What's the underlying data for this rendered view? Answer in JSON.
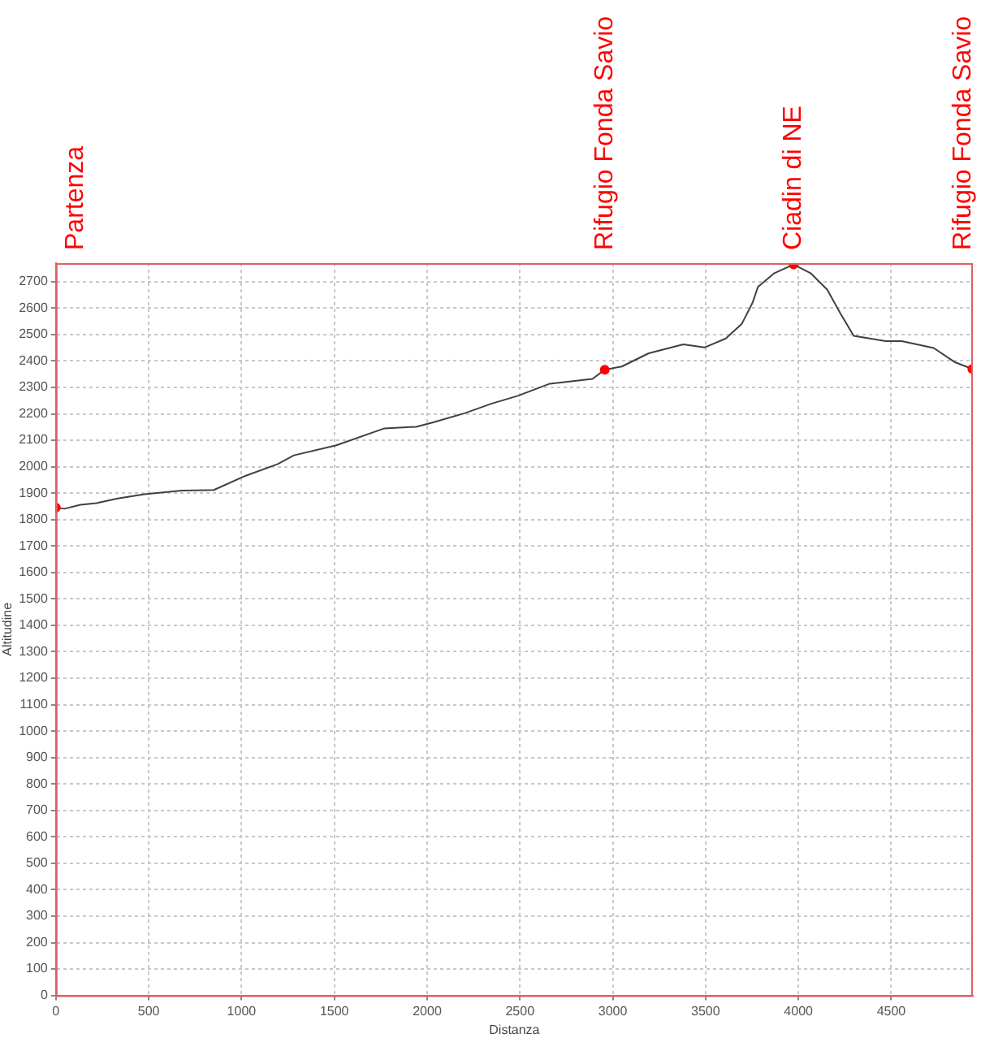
{
  "chart_data": {
    "type": "line",
    "xlabel": "Distanza",
    "ylabel": "Altitudine",
    "xlim": [
      0,
      4940
    ],
    "ylim": [
      0,
      2770
    ],
    "xticks": [
      0,
      500,
      1000,
      1500,
      2000,
      2500,
      3000,
      3500,
      4000,
      4500
    ],
    "yticks": [
      0,
      100,
      200,
      300,
      400,
      500,
      600,
      700,
      800,
      900,
      1000,
      1100,
      1200,
      1300,
      1400,
      1500,
      1600,
      1700,
      1800,
      1900,
      2000,
      2100,
      2200,
      2300,
      2400,
      2500,
      2600,
      2700
    ],
    "grid": true,
    "legend": false,
    "series": [
      {
        "type": "line",
        "color": "#404040",
        "marker": "none",
        "x": [
          0,
          46,
          132,
          218,
          333,
          477,
          678,
          851,
          1023,
          1195,
          1282,
          1511,
          1770,
          1942,
          2029,
          2201,
          2345,
          2488,
          2661,
          2891,
          2957,
          3049,
          3193,
          3380,
          3494,
          3609,
          3695,
          3753,
          3782,
          3868,
          3974,
          4068,
          4155,
          4226,
          4298,
          4471,
          4557,
          4729,
          4844,
          4937
        ],
        "values": [
          1845,
          1841,
          1856,
          1862,
          1880,
          1896,
          1910,
          1912,
          1966,
          2010,
          2043,
          2081,
          2145,
          2151,
          2167,
          2202,
          2238,
          2268,
          2314,
          2332,
          2367,
          2379,
          2429,
          2463,
          2451,
          2485,
          2540,
          2620,
          2680,
          2731,
          2765,
          2731,
          2670,
          2580,
          2495,
          2475,
          2475,
          2449,
          2395,
          2370
        ]
      },
      {
        "type": "scatter",
        "color": "#ff0000",
        "marker": "circle",
        "x": [
          0,
          2957,
          3974,
          4937
        ],
        "values": [
          1845,
          2367,
          2765,
          2370
        ]
      }
    ],
    "annotations": [
      "Partenza",
      "Rifugio Fonda Savio",
      "Ciadin di NE",
      "Rifugio Fonda Savio"
    ]
  }
}
